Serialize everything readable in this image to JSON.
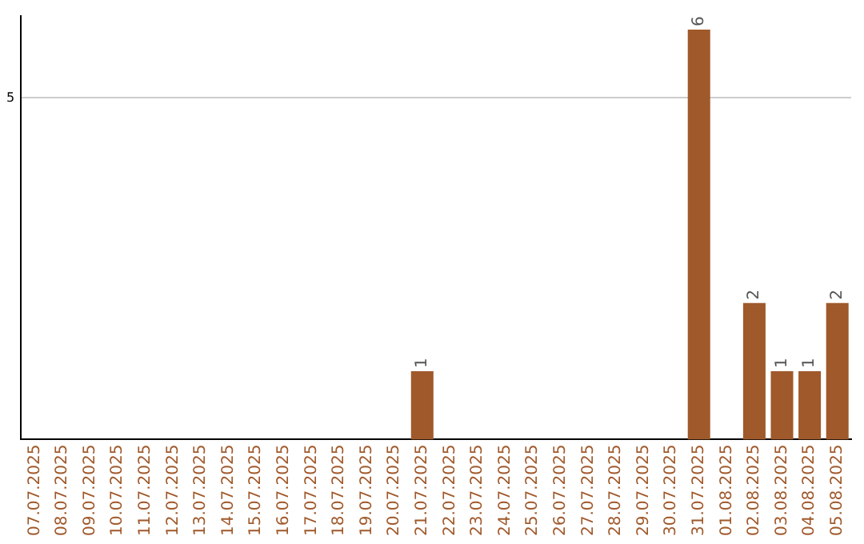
{
  "chart_data": {
    "type": "bar",
    "categories": [
      "07.07.2025",
      "08.07.2025",
      "09.07.2025",
      "10.07.2025",
      "11.07.2025",
      "12.07.2025",
      "13.07.2025",
      "14.07.2025",
      "15.07.2025",
      "16.07.2025",
      "17.07.2025",
      "18.07.2025",
      "19.07.2025",
      "20.07.2025",
      "21.07.2025",
      "22.07.2025",
      "23.07.2025",
      "24.07.2025",
      "25.07.2025",
      "26.07.2025",
      "27.07.2025",
      "28.07.2025",
      "29.07.2025",
      "30.07.2025",
      "31.07.2025",
      "01.08.2025",
      "02.08.2025",
      "03.08.2025",
      "04.08.2025",
      "05.08.2025"
    ],
    "values": [
      null,
      null,
      null,
      null,
      null,
      null,
      null,
      null,
      null,
      null,
      null,
      null,
      null,
      null,
      1,
      null,
      null,
      null,
      null,
      null,
      null,
      null,
      null,
      null,
      6,
      null,
      2,
      1,
      1,
      2
    ],
    "data_labels": true,
    "color": "#a0592b",
    "ylim": [
      0,
      6.2
    ],
    "yticks": [
      5
    ],
    "grid": "y"
  }
}
